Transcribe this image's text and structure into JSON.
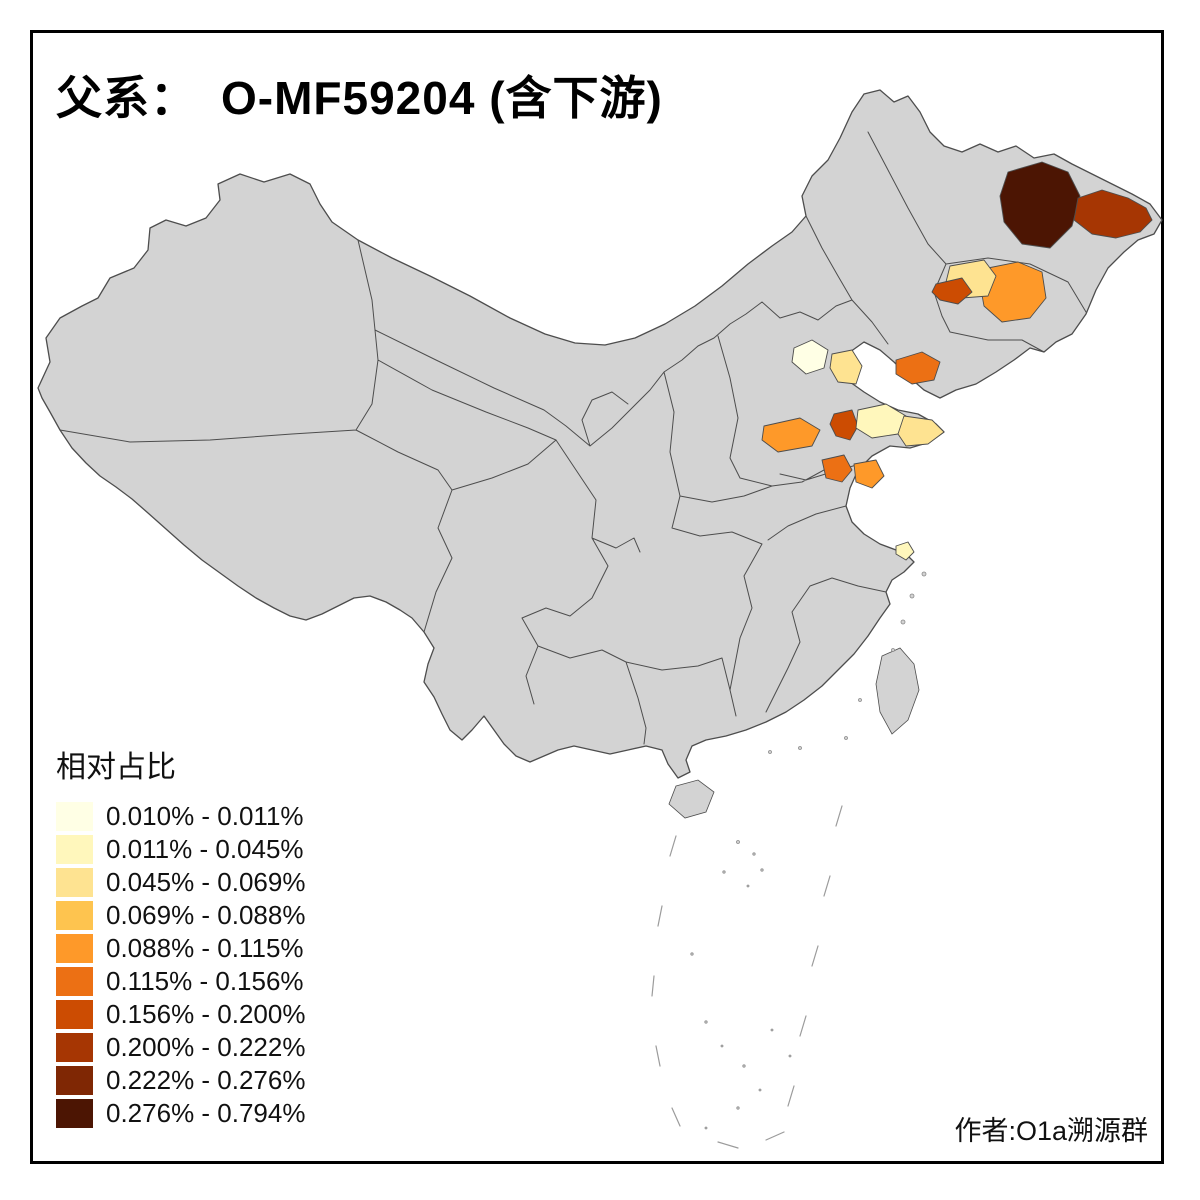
{
  "title": {
    "prefix": "父系：",
    "main": "O-MF59204 (含下游)"
  },
  "legend": {
    "title": "相对占比"
  },
  "attribution": "作者:O1a溯源群",
  "map": {
    "land_fill": "#D3D3D3",
    "border_color": "#4D4D4D",
    "sea_fill": "#FFFFFF",
    "frame_color": "#000000"
  },
  "chart_data": {
    "type": "choropleth",
    "title": "父系： O-MF59204 (含下游)",
    "legend_title": "相对占比",
    "legend_position": "bottom-left",
    "base_fill": "#D3D3D3",
    "border_color": "#4D4D4D",
    "classes": [
      {
        "range": "0.010% - 0.011%",
        "color": "#FFFFE5"
      },
      {
        "range": "0.011% - 0.045%",
        "color": "#FFF7BC"
      },
      {
        "range": "0.045% - 0.069%",
        "color": "#FEE391"
      },
      {
        "range": "0.069% - 0.088%",
        "color": "#FEC44F"
      },
      {
        "range": "0.088% - 0.115%",
        "color": "#FE9929"
      },
      {
        "range": "0.115% - 0.156%",
        "color": "#EC7014"
      },
      {
        "range": "0.156% - 0.200%",
        "color": "#CC4C02"
      },
      {
        "range": "0.200% - 0.222%",
        "color": "#A63603"
      },
      {
        "range": "0.222% - 0.276%",
        "color": "#7F2704"
      },
      {
        "range": "0.276% - 0.794%",
        "color": "#4C1503"
      }
    ],
    "highlighted_regions": [
      {
        "id": "heilongjiang-central",
        "class_index": 10
      },
      {
        "id": "heilongjiang-east",
        "class_index": 8
      },
      {
        "id": "jilin-central",
        "class_index": 5
      },
      {
        "id": "jilin-west",
        "class_index": 3
      },
      {
        "id": "jilin-southwest",
        "class_index": 7
      },
      {
        "id": "liaoning-south",
        "class_index": 6
      },
      {
        "id": "beijing-area",
        "class_index": 1
      },
      {
        "id": "tianjin-area",
        "class_index": 3
      },
      {
        "id": "hebei-south",
        "class_index": 5
      },
      {
        "id": "shandong-west",
        "class_index": 7
      },
      {
        "id": "shandong-north",
        "class_index": 2
      },
      {
        "id": "shandong-east",
        "class_index": 3
      },
      {
        "id": "shandong-southwest",
        "class_index": 6
      },
      {
        "id": "shandong-south",
        "class_index": 5
      },
      {
        "id": "shanghai-area",
        "class_index": 2
      }
    ]
  }
}
